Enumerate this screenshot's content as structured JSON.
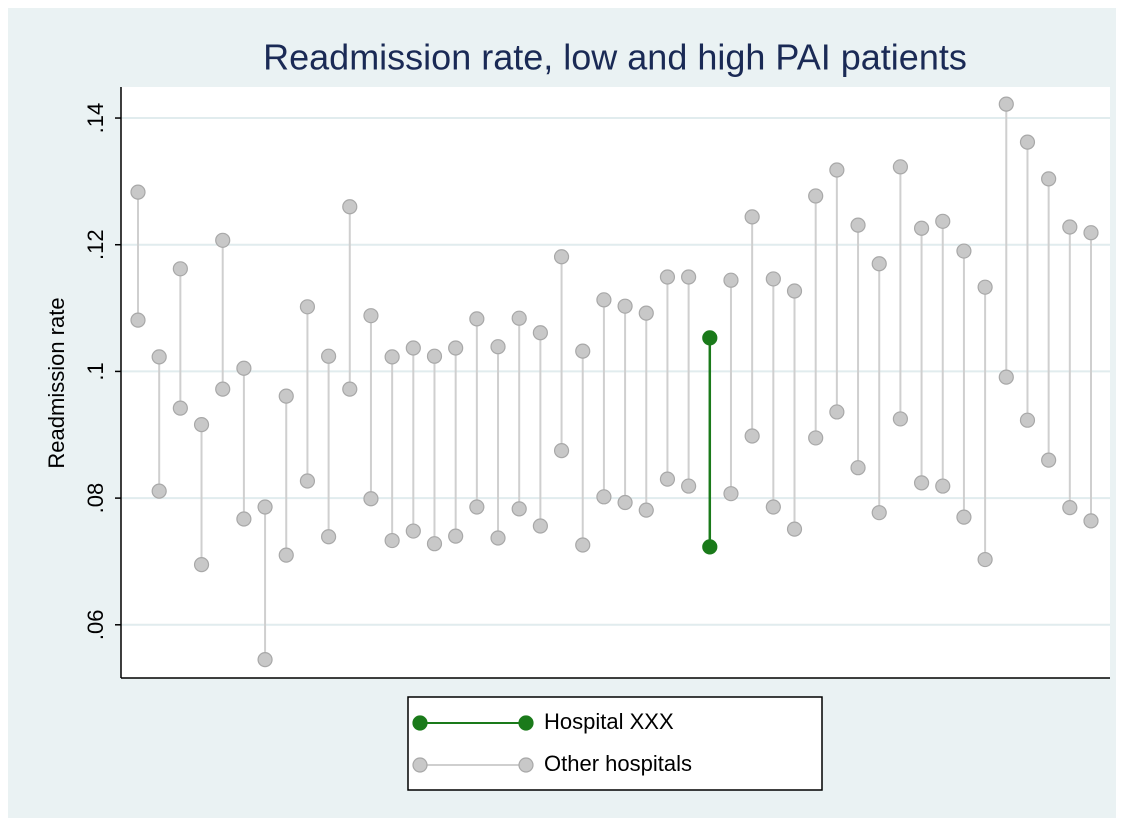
{
  "chart_data": {
    "type": "dumbbell",
    "title": "Readmission rate, low and high PAI patients",
    "ylabel": "Readmission rate",
    "categories": [
      null,
      null,
      null,
      null,
      null,
      null,
      null,
      null,
      null,
      null,
      null,
      null,
      null,
      null,
      null,
      null,
      null,
      null,
      null,
      null,
      null,
      null,
      null,
      null,
      null,
      null,
      null,
      null,
      null,
      null,
      null,
      null,
      null,
      null,
      null,
      null,
      null,
      null,
      null,
      null,
      null,
      null,
      null,
      null,
      null,
      null
    ],
    "series": [
      {
        "name": "Hospital XXX",
        "color": "#1a7a1a",
        "high": [
          null,
          null,
          null,
          null,
          null,
          null,
          null,
          null,
          null,
          null,
          null,
          null,
          null,
          null,
          null,
          null,
          null,
          null,
          null,
          null,
          null,
          null,
          null,
          null,
          null,
          null,
          null,
          0.1053,
          null,
          null,
          null,
          null,
          null,
          null,
          null,
          null,
          null,
          null,
          null,
          null,
          null,
          null,
          null,
          null,
          null,
          null
        ],
        "low": [
          null,
          null,
          null,
          null,
          null,
          null,
          null,
          null,
          null,
          null,
          null,
          null,
          null,
          null,
          null,
          null,
          null,
          null,
          null,
          null,
          null,
          null,
          null,
          null,
          null,
          null,
          null,
          0.0723,
          null,
          null,
          null,
          null,
          null,
          null,
          null,
          null,
          null,
          null,
          null,
          null,
          null,
          null,
          null,
          null,
          null,
          null
        ]
      },
      {
        "name": "Other hospitals",
        "color": "#c8c8c8",
        "high": [
          0.1283,
          0.1023,
          0.1162,
          0.0916,
          0.1207,
          0.1005,
          0.0786,
          0.0961,
          0.1102,
          0.1024,
          0.126,
          0.1088,
          0.1023,
          0.1037,
          0.1024,
          0.1037,
          0.1083,
          0.1039,
          0.1084,
          0.1061,
          0.1181,
          0.1032,
          0.1113,
          0.1103,
          0.1092,
          0.1149,
          0.1149,
          null,
          0.1144,
          0.1244,
          0.1146,
          0.1127,
          0.1277,
          0.1318,
          0.1231,
          0.117,
          0.1323,
          0.1226,
          0.1237,
          0.119,
          0.1133,
          0.1422,
          0.1362,
          0.1304,
          0.1228,
          0.1219
        ],
        "low": [
          0.1081,
          0.0811,
          0.0942,
          0.0695,
          0.0972,
          0.0767,
          0.0545,
          0.071,
          0.0827,
          0.0739,
          0.0972,
          0.0799,
          0.0733,
          0.0748,
          0.0728,
          0.074,
          0.0786,
          0.0737,
          0.0783,
          0.0756,
          0.0875,
          0.0726,
          0.0802,
          0.0793,
          0.0781,
          0.083,
          0.0819,
          null,
          0.0807,
          0.0898,
          0.0786,
          0.0751,
          0.0895,
          0.0936,
          0.0848,
          0.0777,
          0.0925,
          0.0824,
          0.0819,
          0.077,
          0.0703,
          0.0991,
          0.0923,
          0.086,
          0.0785,
          0.0764
        ]
      }
    ],
    "ylim": [
      0.0516,
      0.1449
    ],
    "yticks": [
      {
        "value": 0.06,
        "label": ".06"
      },
      {
        "value": 0.08,
        "label": ".08"
      },
      {
        "value": 0.1,
        "label": ".1"
      },
      {
        "value": 0.12,
        "label": ".12"
      },
      {
        "value": 0.14,
        "label": ".14"
      }
    ],
    "grid": true
  }
}
